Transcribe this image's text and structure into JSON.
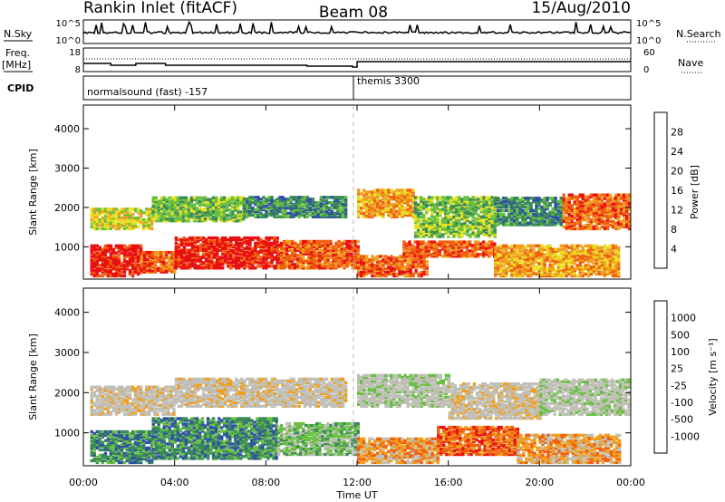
{
  "header": {
    "station": "Rankin Inlet (fitACF)",
    "beam": "Beam 08",
    "date": "15/Aug/2010"
  },
  "strip_labels": {
    "nsky": "N.Sky",
    "nsky_ticks": [
      "10^5",
      "10^0"
    ],
    "nsearch": "N.Search",
    "nsearch_ticks": [
      "10^5",
      "10^0"
    ],
    "freq_top": "Freq.",
    "freq_unit": "[MHz]",
    "freq_ticks": [
      "18",
      "8"
    ],
    "nave": "Nave",
    "nave_ticks": [
      "60",
      "0"
    ],
    "cpid": "CPID",
    "cpid_segments": [
      "normalsound (fast) -157",
      "themis 3300"
    ]
  },
  "colors": {
    "power_scale": [
      "#1a1aff",
      "#3050a8",
      "#3a8a5a",
      "#68c040",
      "#e8e020",
      "#f0a020",
      "#f06010",
      "#e81010"
    ],
    "velocity_scale": [
      "#e81010",
      "#f06010",
      "#f0a020",
      "#c0c0b8",
      "#c0c0b8",
      "#68c040",
      "#3a8a5a",
      "#3050a8",
      "#1a30c8"
    ]
  },
  "chart_data": [
    {
      "type": "heatmap",
      "name": "power",
      "xlabel": "",
      "ylabel": "Slant Range [km]",
      "xlim": [
        0,
        24
      ],
      "ylim": [
        180,
        4600
      ],
      "yticks": [
        1000,
        2000,
        3000,
        4000
      ],
      "colorbar_label": "Power [dB]",
      "colorbar_ticks": [
        "4",
        "8",
        "12",
        "16",
        "20",
        "24",
        "28"
      ],
      "colorbar_range": [
        0,
        32
      ],
      "bands": [
        {
          "t0": 0.3,
          "t1": 2.5,
          "r0": 300,
          "r1": 1100,
          "level": 7
        },
        {
          "t0": 2.5,
          "t1": 4.0,
          "r0": 400,
          "r1": 900,
          "level": 6
        },
        {
          "t0": 4.0,
          "t1": 8.5,
          "r0": 500,
          "r1": 1300,
          "level": 7
        },
        {
          "t0": 8.5,
          "t1": 12.0,
          "r0": 500,
          "r1": 1200,
          "level": 6
        },
        {
          "t0": 12.0,
          "t1": 15.0,
          "r0": 300,
          "r1": 800,
          "level": 6
        },
        {
          "t0": 14.0,
          "t1": 18.0,
          "r0": 800,
          "r1": 1200,
          "level": 6
        },
        {
          "t0": 18.0,
          "t1": 23.5,
          "r0": 300,
          "r1": 1100,
          "level": 5
        },
        {
          "t0": 0.3,
          "t1": 3.0,
          "r0": 1500,
          "r1": 2000,
          "level": 4
        },
        {
          "t0": 3.0,
          "t1": 7.0,
          "r0": 1700,
          "r1": 2300,
          "level": 3
        },
        {
          "t0": 7.0,
          "t1": 11.5,
          "r0": 1800,
          "r1": 2300,
          "level": 2
        },
        {
          "t0": 12.0,
          "t1": 14.5,
          "r0": 1800,
          "r1": 2500,
          "level": 5
        },
        {
          "t0": 14.5,
          "t1": 18.0,
          "r0": 1300,
          "r1": 2300,
          "level": 3
        },
        {
          "t0": 18.0,
          "t1": 21.0,
          "r0": 1600,
          "r1": 2300,
          "level": 2
        },
        {
          "t0": 21.0,
          "t1": 24.0,
          "r0": 1500,
          "r1": 2400,
          "level": 6
        }
      ]
    },
    {
      "type": "heatmap",
      "name": "velocity",
      "xlabel": "Time UT",
      "ylabel": "Slant Range [km]",
      "xlim": [
        0,
        24
      ],
      "ylim": [
        180,
        4600
      ],
      "yticks": [
        1000,
        2000,
        3000,
        4000
      ],
      "xticks": [
        "00:00",
        "04:00",
        "08:00",
        "12:00",
        "16:00",
        "20:00",
        "00:00"
      ],
      "colorbar_label": "Velocity [m s⁻¹]",
      "colorbar_ticks": [
        "-1000",
        "-500",
        "-100",
        "-25",
        "25",
        "100",
        "500",
        "1000"
      ],
      "bands": [
        {
          "t0": 0.3,
          "t1": 3.0,
          "r0": 300,
          "r1": 1100,
          "level": 6
        },
        {
          "t0": 3.0,
          "t1": 8.5,
          "r0": 400,
          "r1": 1400,
          "level": 6
        },
        {
          "t0": 8.5,
          "t1": 12.0,
          "r0": 500,
          "r1": 1300,
          "level": 5
        },
        {
          "t0": 12.0,
          "t1": 15.5,
          "r0": 300,
          "r1": 900,
          "level": 2
        },
        {
          "t0": 15.5,
          "t1": 19.0,
          "r0": 500,
          "r1": 1200,
          "level": 1
        },
        {
          "t0": 19.0,
          "t1": 23.5,
          "r0": 300,
          "r1": 1000,
          "level": 2
        },
        {
          "t0": 0.3,
          "t1": 4.0,
          "r0": 1500,
          "r1": 2200,
          "level": 3
        },
        {
          "t0": 4.0,
          "t1": 11.5,
          "r0": 1700,
          "r1": 2400,
          "level": 3
        },
        {
          "t0": 12.0,
          "t1": 16.0,
          "r0": 1700,
          "r1": 2500,
          "level": 4
        },
        {
          "t0": 16.0,
          "t1": 20.0,
          "r0": 1400,
          "r1": 2300,
          "level": 3
        },
        {
          "t0": 20.0,
          "t1": 24.0,
          "r0": 1500,
          "r1": 2400,
          "level": 4
        }
      ]
    }
  ]
}
